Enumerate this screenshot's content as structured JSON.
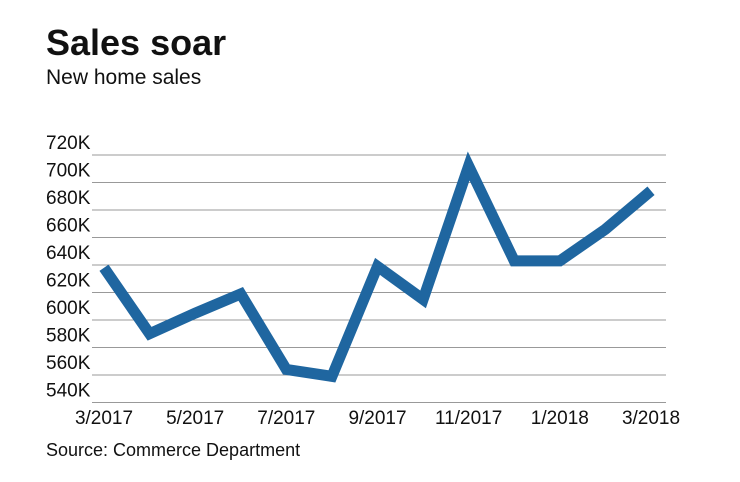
{
  "chart_data": {
    "type": "line",
    "title": "Sales soar",
    "subtitle": "New home sales",
    "source": "Source: Commerce Department",
    "categories": [
      "3/2017",
      null,
      "5/2017",
      null,
      "7/2017",
      null,
      "9/2017",
      null,
      "11/2017",
      null,
      "1/2018",
      null,
      "3/2018"
    ],
    "series": [
      {
        "name": "New home sales",
        "color": "#1f66a0",
        "values": [
          638000,
          590000,
          605000,
          619000,
          564000,
          559000,
          639000,
          615000,
          712000,
          643000,
          643000,
          666000,
          694000
        ]
      }
    ],
    "ylim": [
      540000,
      720000
    ],
    "yticks": [
      {
        "value": 540000,
        "label": "540K"
      },
      {
        "value": 560000,
        "label": "560K"
      },
      {
        "value": 580000,
        "label": "580K"
      },
      {
        "value": 600000,
        "label": "600K"
      },
      {
        "value": 620000,
        "label": "620K"
      },
      {
        "value": 640000,
        "label": "640K"
      },
      {
        "value": 660000,
        "label": "660K"
      },
      {
        "value": 680000,
        "label": "680K"
      },
      {
        "value": 700000,
        "label": "700K"
      },
      {
        "value": 720000,
        "label": "720K"
      }
    ],
    "grid": true
  }
}
